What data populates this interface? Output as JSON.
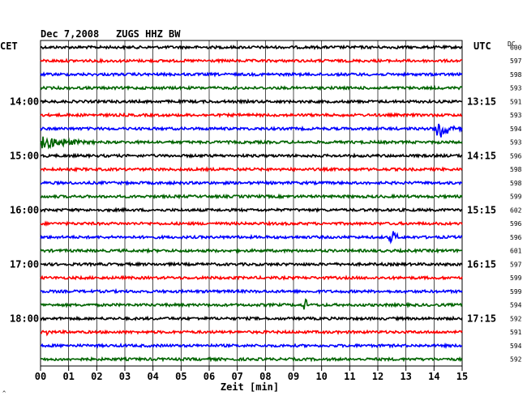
{
  "header": {
    "date": "Dec 7,2008",
    "station": "ZUGS HHZ BW",
    "left_tz": "CET",
    "right_tz": "UTC",
    "dc_label": "DC"
  },
  "chart_data": {
    "type": "line",
    "title": "Dec 7,2008   ZUGS HHZ BW",
    "xlabel": "Zeit [min]",
    "x_ticks": [
      "00",
      "01",
      "02",
      "03",
      "04",
      "05",
      "06",
      "07",
      "08",
      "09",
      "10",
      "11",
      "12",
      "13",
      "14",
      "15"
    ],
    "xlim": [
      0,
      15
    ],
    "grid": true,
    "trace_colors": [
      "#000000",
      "#ff0000",
      "#0000ff",
      "#006400"
    ],
    "left_time_labels": [
      {
        "trace": 4,
        "label": "14:00"
      },
      {
        "trace": 8,
        "label": "15:00"
      },
      {
        "trace": 12,
        "label": "16:00"
      },
      {
        "trace": 16,
        "label": "17:00"
      },
      {
        "trace": 20,
        "label": "18:00"
      }
    ],
    "right_time_labels": [
      {
        "trace": 4,
        "label": "13:15"
      },
      {
        "trace": 8,
        "label": "14:15"
      },
      {
        "trace": 12,
        "label": "15:15"
      },
      {
        "trace": 16,
        "label": "16:15"
      },
      {
        "trace": 20,
        "label": "17:15"
      }
    ],
    "dc_offsets": [
      600,
      597,
      598,
      593,
      591,
      593,
      594,
      593,
      596,
      598,
      598,
      599,
      602,
      596,
      596,
      601,
      597,
      599,
      599,
      594,
      592,
      591,
      594,
      592
    ],
    "events": [
      {
        "trace": 6,
        "start_min": 14.0,
        "end_min": 15.0,
        "amplitude": "large"
      },
      {
        "trace": 7,
        "start_min": 0.0,
        "end_min": 2.0,
        "amplitude": "medium"
      },
      {
        "trace": 14,
        "start_min": 12.4,
        "end_min": 13.0,
        "amplitude": "medium"
      },
      {
        "trace": 19,
        "start_min": 9.3,
        "end_min": 9.7,
        "amplitude": "medium"
      },
      {
        "trace": 21,
        "start_min": 0.2,
        "end_min": 0.5,
        "amplitude": "small"
      }
    ]
  }
}
